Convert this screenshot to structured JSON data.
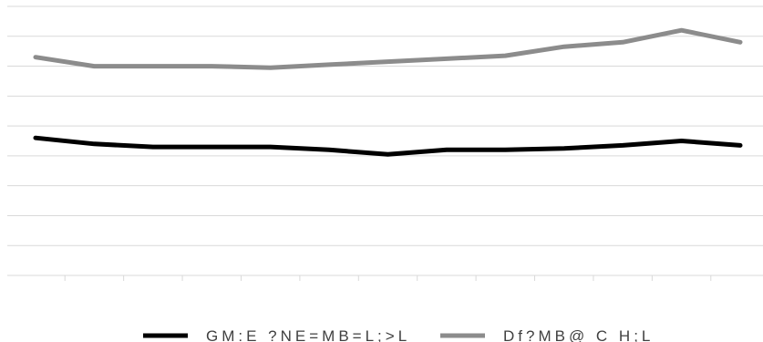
{
  "chart_data": {
    "type": "line",
    "title": "",
    "xlabel": "",
    "ylabel": "",
    "x_count": 13,
    "ylim": [
      0,
      9
    ],
    "grid": true,
    "y_ticks": [
      0,
      1,
      2,
      3,
      4,
      5,
      6,
      7,
      8,
      9
    ],
    "series": [
      {
        "name": "GM:E ?NE=MB=L;>L Df?MB@ C H;L",
        "color": "#000000",
        "values": [
          4.6,
          4.4,
          4.3,
          4.3,
          4.3,
          4.2,
          4.05,
          4.2,
          4.2,
          4.25,
          4.35,
          4.5,
          4.35
        ]
      },
      {
        "name": "GM:E ?NE=MB=L;>L Df?MB@ C H;L",
        "color": "#8c8c8c",
        "values": [
          7.3,
          7.0,
          7.0,
          7.0,
          6.95,
          7.05,
          7.15,
          7.25,
          7.35,
          7.65,
          7.8,
          8.2,
          7.8
        ]
      }
    ],
    "legend_placement": "bottom-center",
    "legend": [
      {
        "label": "GM:E ?NE=MB=L;>L",
        "color": "#000000"
      },
      {
        "label": "Df?MB@ C H;L",
        "color": "#8c8c8c"
      }
    ]
  }
}
